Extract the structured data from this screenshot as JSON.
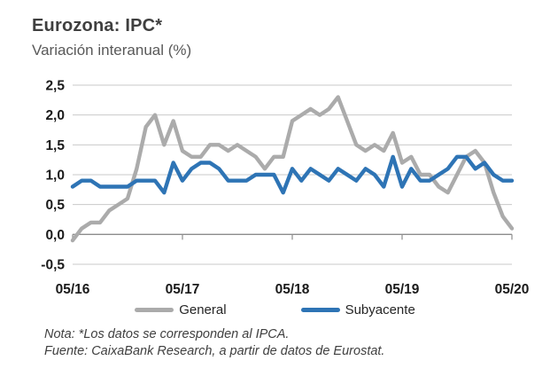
{
  "header": {
    "title": "Eurozona: IPC*",
    "subtitle": "Variación interanual (%)"
  },
  "notes": {
    "line1": "Nota: *Los datos se corresponden al IPCA.",
    "line2": "Fuente: CaixaBank Research, a partir de datos de Eurostat."
  },
  "chart_data": {
    "type": "line",
    "title": "Eurozona: IPC*",
    "ylabel": "Variación interanual (%)",
    "x_frequency": "monthly",
    "x_range": [
      "05/16",
      "05/20"
    ],
    "x_ticks": [
      {
        "label": "05/16",
        "month": 0
      },
      {
        "label": "05/17",
        "month": 12
      },
      {
        "label": "05/18",
        "month": 24
      },
      {
        "label": "05/19",
        "month": 36
      },
      {
        "label": "05/20",
        "month": 48
      }
    ],
    "y_ticks": [
      {
        "label": "2,5",
        "value": 2.5
      },
      {
        "label": "2,0",
        "value": 2.0
      },
      {
        "label": "1,5",
        "value": 1.5
      },
      {
        "label": "1,0",
        "value": 1.0
      },
      {
        "label": "0,5",
        "value": 0.5
      },
      {
        "label": "0,0",
        "value": 0.0
      },
      {
        "label": "-0,5",
        "value": -0.5
      }
    ],
    "ylim": [
      -0.5,
      2.5
    ],
    "grid": "horizontal",
    "legend_position": "bottom",
    "series": [
      {
        "name": "General",
        "color": "#ABABAB",
        "values": [
          -0.1,
          0.1,
          0.2,
          0.2,
          0.4,
          0.5,
          0.6,
          1.1,
          1.8,
          2.0,
          1.5,
          1.9,
          1.4,
          1.3,
          1.3,
          1.5,
          1.5,
          1.4,
          1.5,
          1.4,
          1.3,
          1.1,
          1.3,
          1.3,
          1.9,
          2.0,
          2.1,
          2.0,
          2.1,
          2.3,
          1.9,
          1.5,
          1.4,
          1.5,
          1.4,
          1.7,
          1.2,
          1.3,
          1.0,
          1.0,
          0.8,
          0.7,
          1.0,
          1.3,
          1.4,
          1.2,
          0.7,
          0.3,
          0.1
        ]
      },
      {
        "name": "Subyacente",
        "color": "#2E74B5",
        "values": [
          0.8,
          0.9,
          0.9,
          0.8,
          0.8,
          0.8,
          0.8,
          0.9,
          0.9,
          0.9,
          0.7,
          1.2,
          0.9,
          1.1,
          1.2,
          1.2,
          1.1,
          0.9,
          0.9,
          0.9,
          1.0,
          1.0,
          1.0,
          0.7,
          1.1,
          0.9,
          1.1,
          1.0,
          0.9,
          1.1,
          1.0,
          0.9,
          1.1,
          1.0,
          0.8,
          1.3,
          0.8,
          1.1,
          0.9,
          0.9,
          1.0,
          1.1,
          1.3,
          1.3,
          1.1,
          1.2,
          1.0,
          0.9,
          0.9
        ]
      }
    ]
  }
}
